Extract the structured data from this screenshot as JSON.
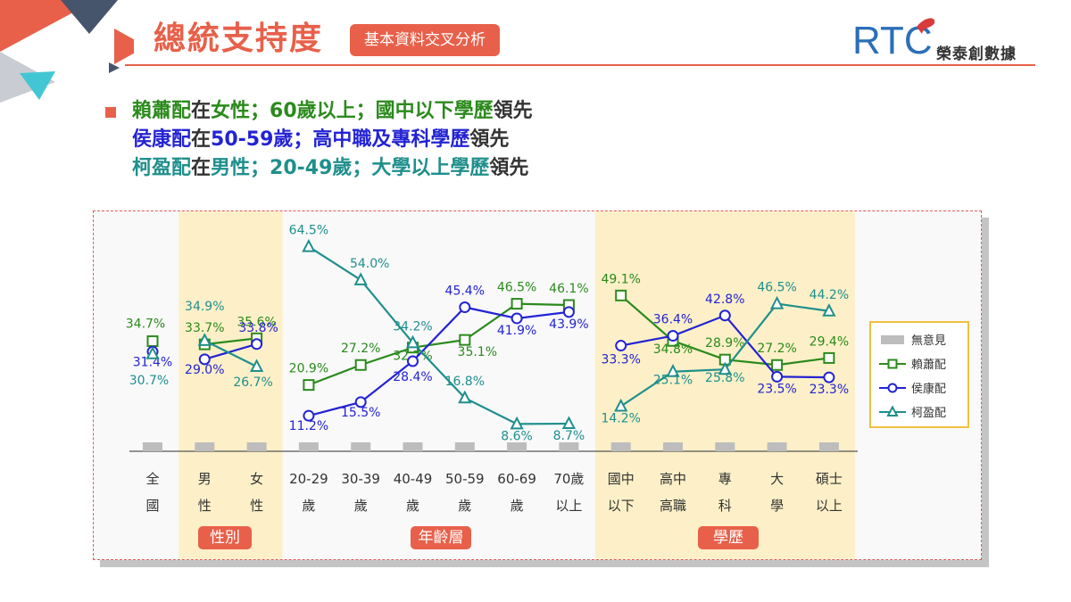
{
  "header": {
    "title": "總統支持度",
    "badge": "基本資料交叉分析",
    "logo_mark": "RTC",
    "logo_text": "榮泰創數據"
  },
  "summary": {
    "line1": {
      "a": "賴蕭配",
      "b": "在",
      "c": "女性；60歲以上；國中以下學歷",
      "d": "領先"
    },
    "line2": {
      "a": "侯康配",
      "b": "在",
      "c": "50-59歲；高中職及專科學歷",
      "d": "領先"
    },
    "line3": {
      "a": "柯盈配",
      "b": "在",
      "c": "男性；20-49歲；大學以上學歷",
      "d": "領先"
    }
  },
  "groups": {
    "gender": "性別",
    "age": "年齡層",
    "edu": "學歷"
  },
  "colors": {
    "lai": "#2b8a1c",
    "hou": "#2323d4",
    "ko": "#1f8f8c",
    "none": "#bdbdbd",
    "accent": "#e8604a",
    "highlight": "#fdf0c8"
  },
  "chart_data": {
    "type": "line",
    "categories": [
      [
        "全",
        "國"
      ],
      [
        "男",
        "性"
      ],
      [
        "女",
        "性"
      ],
      [
        "20-29",
        "歲"
      ],
      [
        "30-39",
        "歲"
      ],
      [
        "40-49",
        "歲"
      ],
      [
        "50-59",
        "歲"
      ],
      [
        "60-69",
        "歲"
      ],
      [
        "70歲",
        "以上"
      ],
      [
        "國中",
        "以下"
      ],
      [
        "高中",
        "高職"
      ],
      [
        "專",
        "科"
      ],
      [
        "大",
        "學"
      ],
      [
        "碩士",
        "以上"
      ]
    ],
    "segments": [
      [
        0,
        0
      ],
      [
        1,
        2
      ],
      [
        3,
        8
      ],
      [
        9,
        13
      ]
    ],
    "highlight_segments": [
      1,
      3
    ],
    "ylim": [
      0,
      70
    ],
    "series": [
      {
        "name": "賴蕭配",
        "key": "lai",
        "marker": "square",
        "values": [
          34.7,
          33.7,
          35.6,
          20.9,
          27.2,
          32.7,
          35.1,
          46.5,
          46.1,
          49.1,
          34.8,
          28.9,
          27.2,
          29.4
        ]
      },
      {
        "name": "侯康配",
        "key": "hou",
        "marker": "circle",
        "values": [
          31.4,
          29.0,
          33.8,
          11.2,
          15.5,
          28.4,
          45.4,
          41.9,
          43.9,
          33.3,
          36.4,
          42.8,
          23.5,
          23.3
        ]
      },
      {
        "name": "柯盈配",
        "key": "ko",
        "marker": "triangle",
        "values": [
          30.7,
          34.9,
          26.7,
          64.5,
          54.0,
          34.2,
          16.8,
          8.6,
          8.7,
          14.2,
          25.1,
          25.8,
          46.5,
          44.2
        ]
      }
    ],
    "none_series": {
      "name": "無意見"
    },
    "legend": [
      "無意見",
      "賴蕭配",
      "侯康配",
      "柯盈配"
    ],
    "legend_position": "right",
    "data_labels": true
  }
}
